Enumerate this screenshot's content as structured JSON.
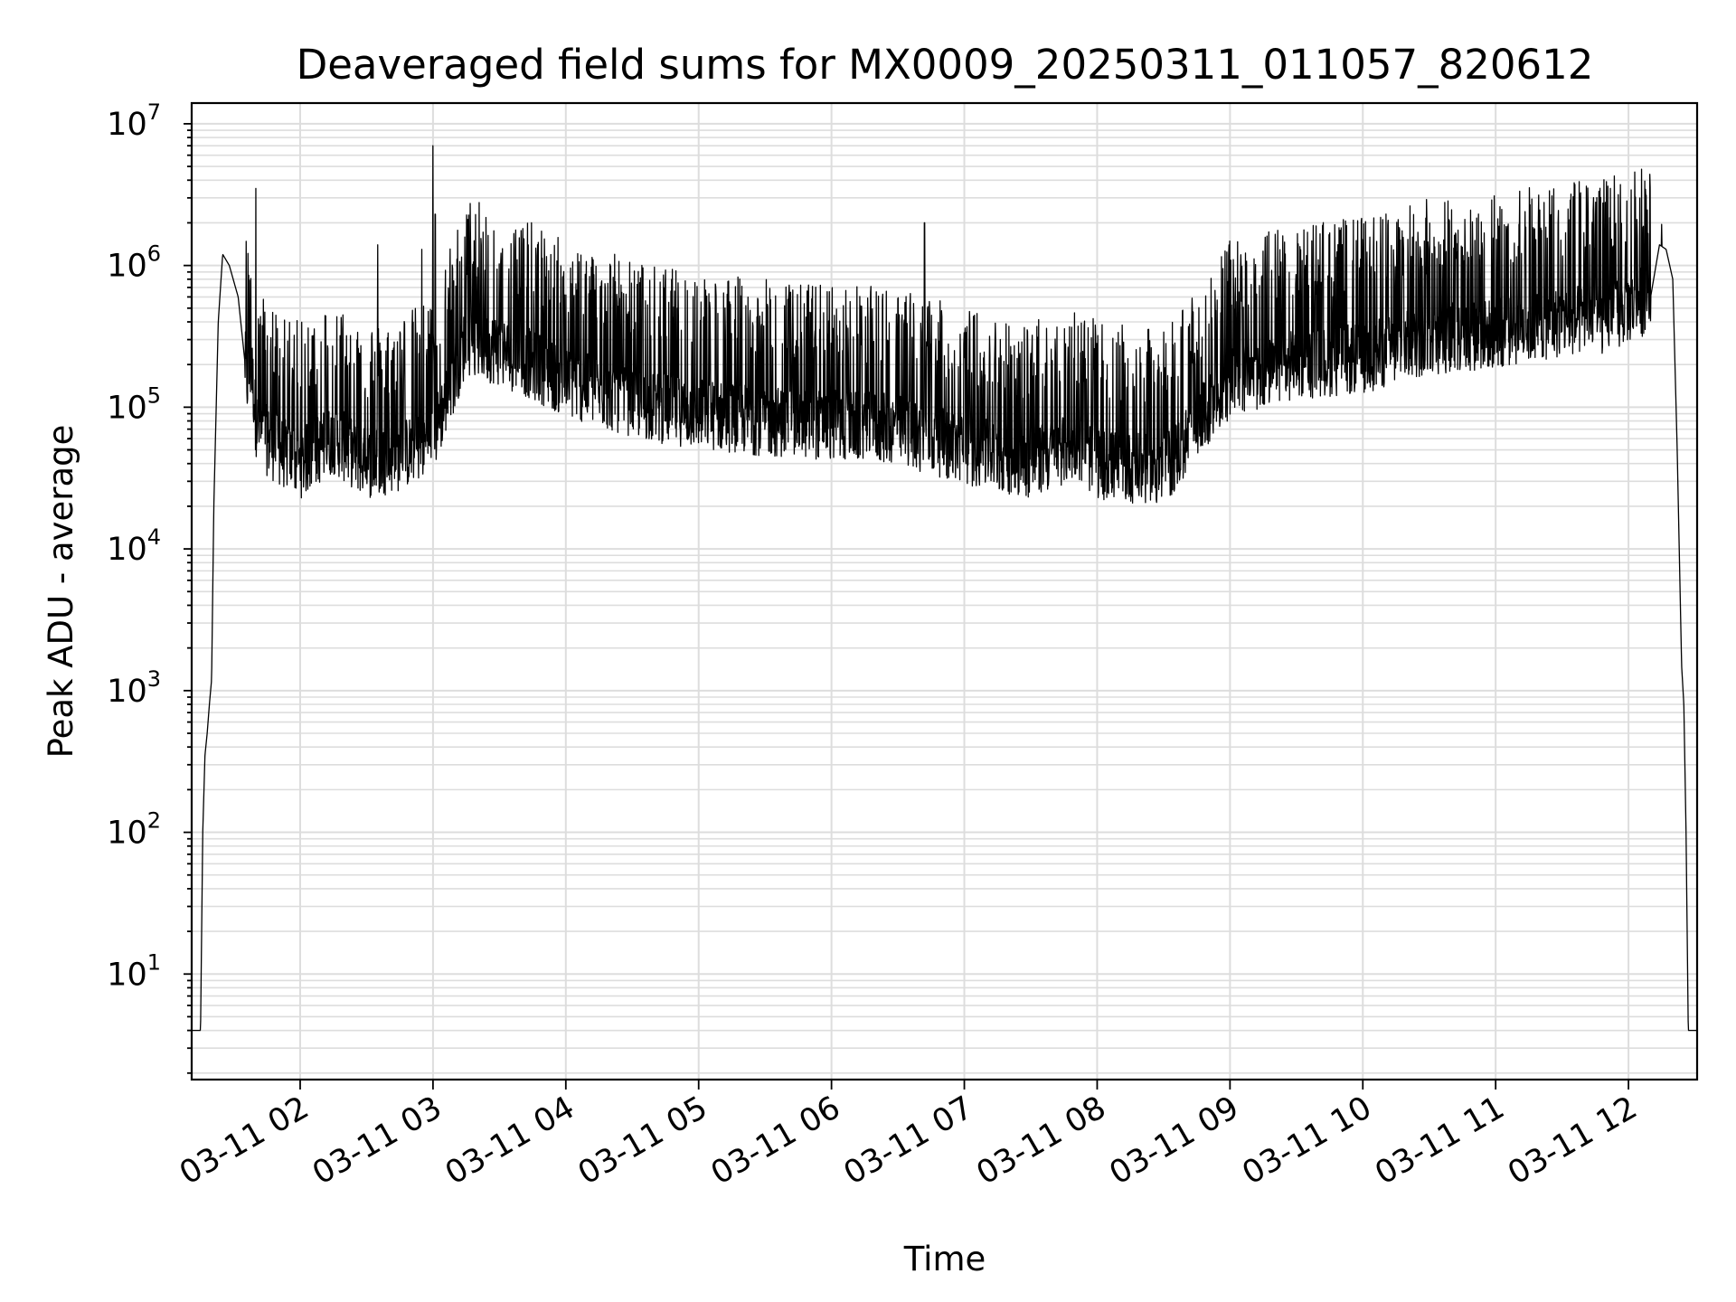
{
  "chart_data": {
    "type": "line",
    "title": "Deaveraged field sums for MX0009_20250311_011057_820612",
    "xlabel": "Time",
    "ylabel": "Peak ADU - average",
    "x_range": [
      "2025-03-11T01:11:00",
      "2025-03-11T12:31:00"
    ],
    "ylim": [
      1.8,
      14000000
    ],
    "yscale": "log",
    "grid": true,
    "line_color": "#000000",
    "x_ticks": [
      "03-11 02",
      "03-11 03",
      "03-11 04",
      "03-11 05",
      "03-11 06",
      "03-11 07",
      "03-11 08",
      "03-11 09",
      "03-11 10",
      "03-11 11",
      "03-11 12"
    ],
    "y_ticks": [
      {
        "base": "10",
        "exp": "1",
        "value": 10
      },
      {
        "base": "10",
        "exp": "2",
        "value": 100
      },
      {
        "base": "10",
        "exp": "3",
        "value": 1000
      },
      {
        "base": "10",
        "exp": "4",
        "value": 10000
      },
      {
        "base": "10",
        "exp": "5",
        "value": 100000
      },
      {
        "base": "10",
        "exp": "6",
        "value": 1000000
      },
      {
        "base": "10",
        "exp": "7",
        "value": 10000000
      }
    ],
    "series": [
      {
        "x": [
          "2025-03-11T01:11:00",
          "2025-03-11T01:14:00",
          "2025-03-11T01:15:00",
          "2025-03-11T01:16:00",
          "2025-03-11T01:17:00",
          "2025-03-11T01:18:00",
          "2025-03-11T01:19:00",
          "2025-03-11T01:20:00",
          "2025-03-11T01:21:00",
          "2025-03-11T01:23:00",
          "2025-03-11T01:25:00",
          "2025-03-11T01:28:00",
          "2025-03-11T01:32:00",
          "2025-03-11T01:36:00",
          "2025-03-11T01:38:00",
          "2025-03-11T01:40:00",
          "2025-03-11T01:44:00",
          "2025-03-11T01:50:00",
          "2025-03-11T02:00:00",
          "2025-03-11T02:15:00",
          "2025-03-11T02:30:00",
          "2025-03-11T02:45:00",
          "2025-03-11T03:00:00",
          "2025-03-11T03:15:00",
          "2025-03-11T03:30:00",
          "2025-03-11T03:45:00",
          "2025-03-11T04:00:00",
          "2025-03-11T04:20:00",
          "2025-03-11T04:40:00",
          "2025-03-11T05:00:00",
          "2025-03-11T05:30:00",
          "2025-03-11T06:00:00",
          "2025-03-11T06:30:00",
          "2025-03-11T07:00:00",
          "2025-03-11T07:30:00",
          "2025-03-11T07:50:00",
          "2025-03-11T08:00:00",
          "2025-03-11T08:30:00",
          "2025-03-11T09:00:00",
          "2025-03-11T09:30:00",
          "2025-03-11T10:00:00",
          "2025-03-11T10:30:00",
          "2025-03-11T11:00:00",
          "2025-03-11T11:30:00",
          "2025-03-11T11:50:00",
          "2025-03-11T12:10:00",
          "2025-03-11T12:14:00",
          "2025-03-11T12:17:00",
          "2025-03-11T12:20:00",
          "2025-03-11T12:22:00",
          "2025-03-11T12:24:00",
          "2025-03-11T12:25:00",
          "2025-03-11T12:26:00",
          "2025-03-11T12:27:00",
          "2025-03-11T12:28:00",
          "2025-03-11T12:31:00"
        ],
        "y": [
          4,
          4,
          4,
          100,
          350,
          500,
          800,
          1200,
          20000,
          400000,
          1200000,
          1000000,
          600000,
          150000,
          200000,
          80000,
          60000,
          50000,
          40000,
          60000,
          40000,
          45000,
          60000,
          300000,
          250000,
          200000,
          150000,
          120000,
          100000,
          90000,
          80000,
          75000,
          70000,
          50000,
          40000,
          55000,
          40000,
          35000,
          150000,
          200000,
          220000,
          300000,
          330000,
          400000,
          420000,
          600000,
          1400000,
          1300000,
          800000,
          50000,
          1500,
          800,
          100,
          4,
          4,
          4
        ]
      }
    ]
  }
}
